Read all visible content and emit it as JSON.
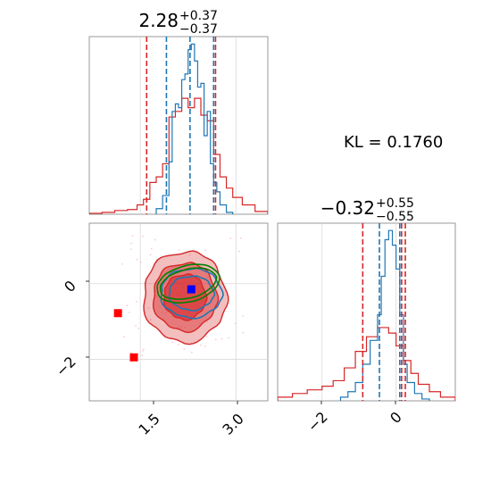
{
  "chart_data": [
    {
      "type": "histogram",
      "panel": "marginal-param-1",
      "title": {
        "value": "2.28",
        "plus": "+0.37",
        "minus": "−0.37"
      },
      "xlim": [
        0.7,
        3.5
      ],
      "xticks": [
        1.5,
        3.0
      ],
      "grid": true,
      "series": [
        {
          "color": "#1f77b4",
          "bin_edges": [
            1.75,
            1.85,
            1.95,
            2.0,
            2.05,
            2.1,
            2.15,
            2.2,
            2.25,
            2.3,
            2.35,
            2.4,
            2.45,
            2.5,
            2.55,
            2.6,
            2.65,
            2.7,
            2.75,
            2.85,
            2.95
          ],
          "values": [
            0.03,
            0.1,
            0.28,
            0.55,
            0.59,
            0.57,
            0.72,
            0.75,
            0.88,
            0.91,
            0.82,
            0.68,
            0.7,
            0.42,
            0.55,
            0.27,
            0.17,
            0.12,
            0.05,
            0.01
          ],
          "quantile_lines": [
            1.91,
            2.28,
            2.65
          ]
        },
        {
          "color": "#d62728",
          "bin_edges": [
            0.7,
            0.9,
            1.1,
            1.3,
            1.45,
            1.55,
            1.65,
            1.75,
            1.85,
            1.95,
            2.05,
            2.15,
            2.25,
            2.35,
            2.45,
            2.55,
            2.65,
            2.75,
            2.85,
            2.95,
            3.1,
            3.3,
            3.5
          ],
          "values": [
            0.005,
            0.01,
            0.02,
            0.025,
            0.05,
            0.08,
            0.17,
            0.2,
            0.27,
            0.52,
            0.55,
            0.62,
            0.57,
            0.62,
            0.53,
            0.5,
            0.32,
            0.2,
            0.14,
            0.09,
            0.05,
            0.015
          ],
          "quantile_lines": [
            1.6,
            2.68
          ]
        }
      ]
    },
    {
      "type": "histogram",
      "panel": "marginal-param-2",
      "title": {
        "value": "−0.32",
        "plus": "+0.55",
        "minus": "−0.55"
      },
      "xlim": [
        -3.2,
        1.6
      ],
      "xticks": [
        -2,
        0
      ],
      "grid": true,
      "series": [
        {
          "color": "#1f77b4",
          "bin_edges": [
            -1.5,
            -1.3,
            -1.1,
            -0.9,
            -0.7,
            -0.5,
            -0.4,
            -0.3,
            -0.2,
            -0.1,
            0.0,
            0.1,
            0.2,
            0.3,
            0.5,
            0.7,
            0.9
          ],
          "values": [
            0.02,
            0.05,
            0.1,
            0.2,
            0.33,
            0.47,
            0.68,
            0.88,
            0.93,
            0.85,
            0.72,
            0.47,
            0.2,
            0.1,
            0.04,
            0.01
          ],
          "quantile_lines": [
            -0.45,
            0.1
          ]
        },
        {
          "color": "#d62728",
          "bin_edges": [
            -3.2,
            -2.8,
            -2.4,
            -2.0,
            -1.7,
            -1.4,
            -1.1,
            -0.8,
            -0.5,
            -0.2,
            0.0,
            0.2,
            0.4,
            0.6,
            0.9,
            1.2,
            1.6
          ],
          "values": [
            0.02,
            0.04,
            0.06,
            0.08,
            0.11,
            0.18,
            0.27,
            0.35,
            0.4,
            0.37,
            0.3,
            0.22,
            0.15,
            0.09,
            0.05,
            0.02
          ],
          "quantile_lines": [
            -0.9,
            0.15,
            0.25
          ]
        }
      ]
    },
    {
      "type": "contour",
      "panel": "joint-2d",
      "xlim": [
        0.7,
        3.5
      ],
      "ylim": [
        -3.1,
        1.6
      ],
      "xticks": [
        1.5,
        3.0
      ],
      "yticks": [
        -2,
        0
      ],
      "grid": true,
      "filled_contours": [
        {
          "color": "#d62728",
          "center": [
            2.2,
            -0.35
          ],
          "spread": [
            0.65,
            1.2
          ],
          "opacity": 0.3
        },
        {
          "color": "#d62728",
          "center": [
            2.2,
            -0.35
          ],
          "spread": [
            0.5,
            0.9
          ],
          "opacity": 0.45
        },
        {
          "color": "#d62728",
          "center": [
            2.2,
            -0.35
          ],
          "spread": [
            0.33,
            0.6
          ],
          "opacity": 0.6
        }
      ],
      "line_contours": [
        {
          "color": "#1f77b4",
          "center": [
            2.3,
            -0.25
          ],
          "spread": [
            0.48,
            0.65
          ]
        },
        {
          "color": "#1f77b4",
          "center": [
            2.3,
            -0.25
          ],
          "spread": [
            0.35,
            0.45
          ]
        },
        {
          "color": "#008000",
          "center": [
            2.25,
            0.0
          ],
          "spread": [
            0.45,
            0.38
          ],
          "tilt": -0.25
        },
        {
          "color": "#008000",
          "center": [
            2.25,
            0.0
          ],
          "spread": [
            0.5,
            0.48
          ],
          "tilt": -0.25
        }
      ],
      "markers": [
        {
          "x": 2.3,
          "y": -0.15,
          "color": "#0000ff",
          "shape": "square"
        },
        {
          "x": 1.15,
          "y": -0.78,
          "color": "#ff0000",
          "shape": "square"
        },
        {
          "x": 1.4,
          "y": -1.95,
          "color": "#ff0000",
          "shape": "square"
        }
      ]
    }
  ],
  "annotation": {
    "text": "KL = 0.1760"
  },
  "ticks": {
    "bottom_left": [
      "1.5",
      "3.0"
    ],
    "left": [
      "0",
      "−2"
    ],
    "bottom_right": [
      "−2",
      "0"
    ]
  }
}
